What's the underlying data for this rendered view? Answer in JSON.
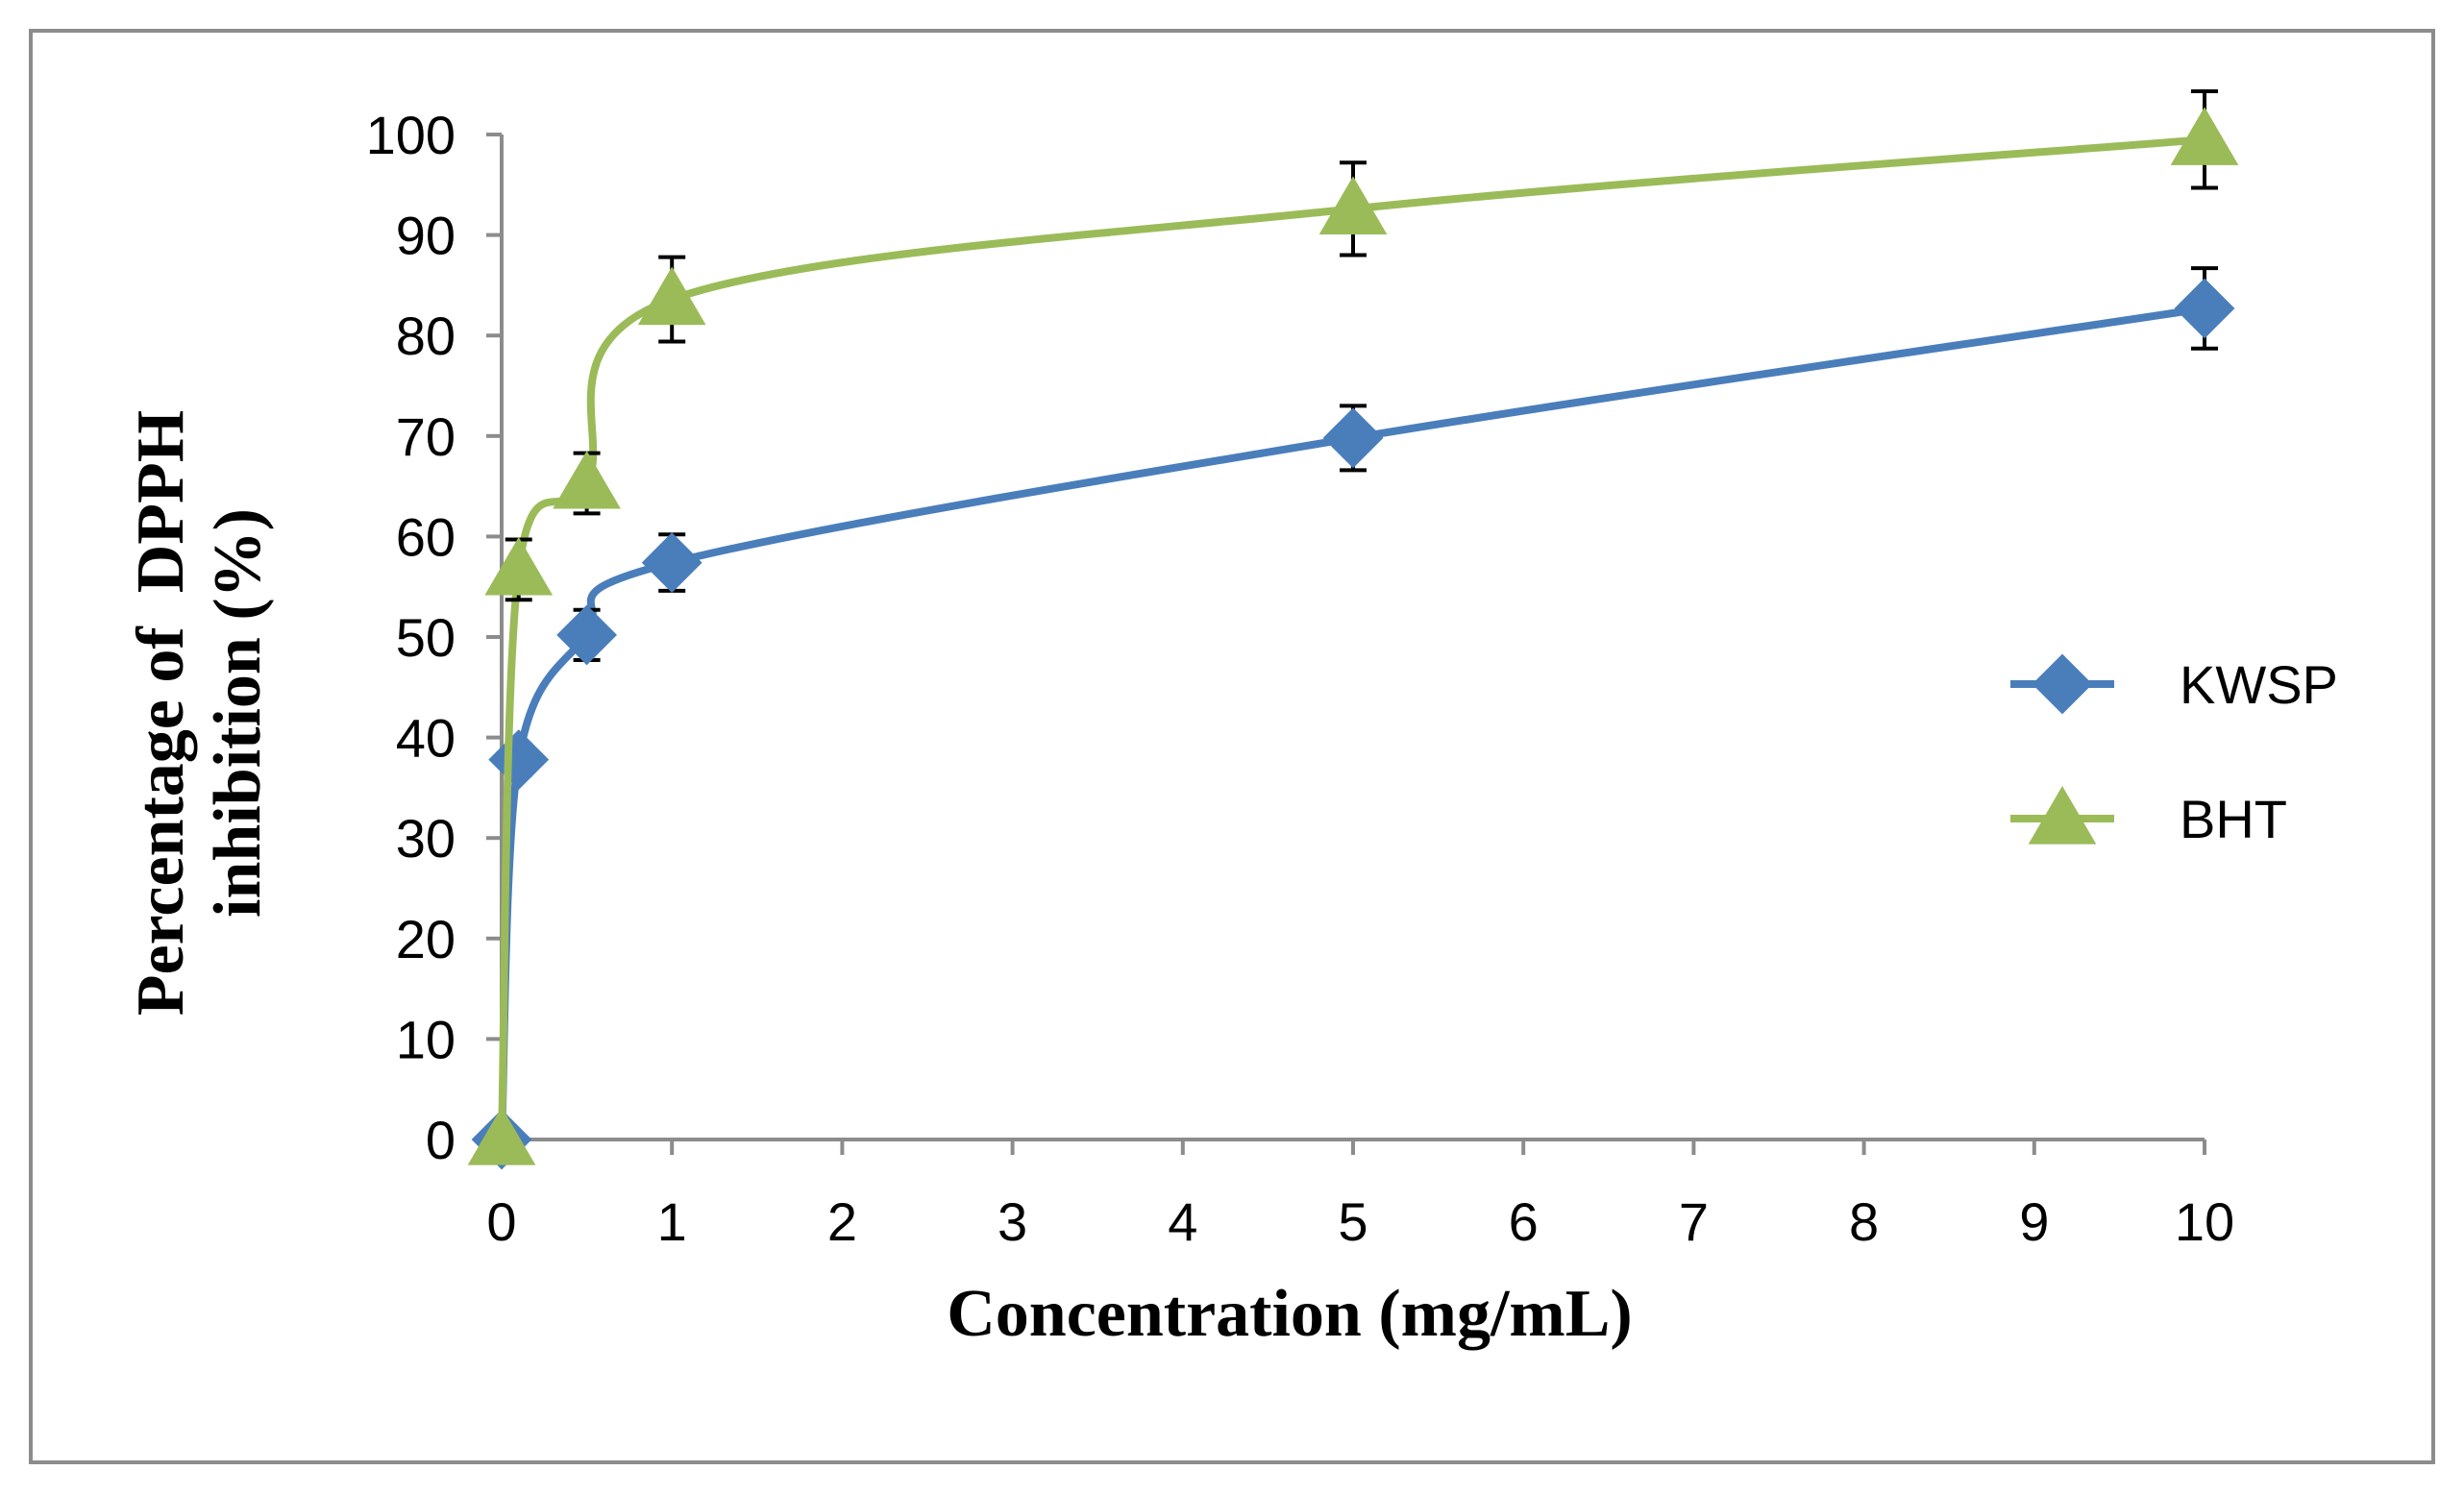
{
  "chart_data": {
    "type": "line",
    "title": "",
    "xlabel": "Concentration (mg/mL)",
    "ylabel_lines": [
      "Percentage of  DPPH",
      "inhibition (%)"
    ],
    "xlim": [
      0,
      10
    ],
    "ylim": [
      0,
      100
    ],
    "x_ticks": [
      0,
      1,
      2,
      3,
      4,
      5,
      6,
      7,
      8,
      9,
      10
    ],
    "y_ticks": [
      0,
      10,
      20,
      30,
      40,
      50,
      60,
      70,
      80,
      90,
      100
    ],
    "grid": false,
    "legend_position": "right",
    "series": [
      {
        "name": "KWSP",
        "color": "#4a7ebb",
        "marker": "diamond",
        "x": [
          0,
          0.1,
          0.5,
          1,
          5,
          10
        ],
        "y": [
          0,
          37.8,
          50.2,
          57.4,
          69.8,
          82.7
        ],
        "err": [
          0,
          1.5,
          2.5,
          2.8,
          3.2,
          4.0
        ]
      },
      {
        "name": "BHT",
        "color": "#9bbb59",
        "marker": "triangle",
        "x": [
          0,
          0.1,
          0.5,
          1,
          5,
          10
        ],
        "y": [
          0,
          56.7,
          65.3,
          83.6,
          92.6,
          99.5
        ],
        "err": [
          0,
          3.0,
          3.0,
          4.2,
          4.6,
          4.8
        ]
      }
    ]
  }
}
